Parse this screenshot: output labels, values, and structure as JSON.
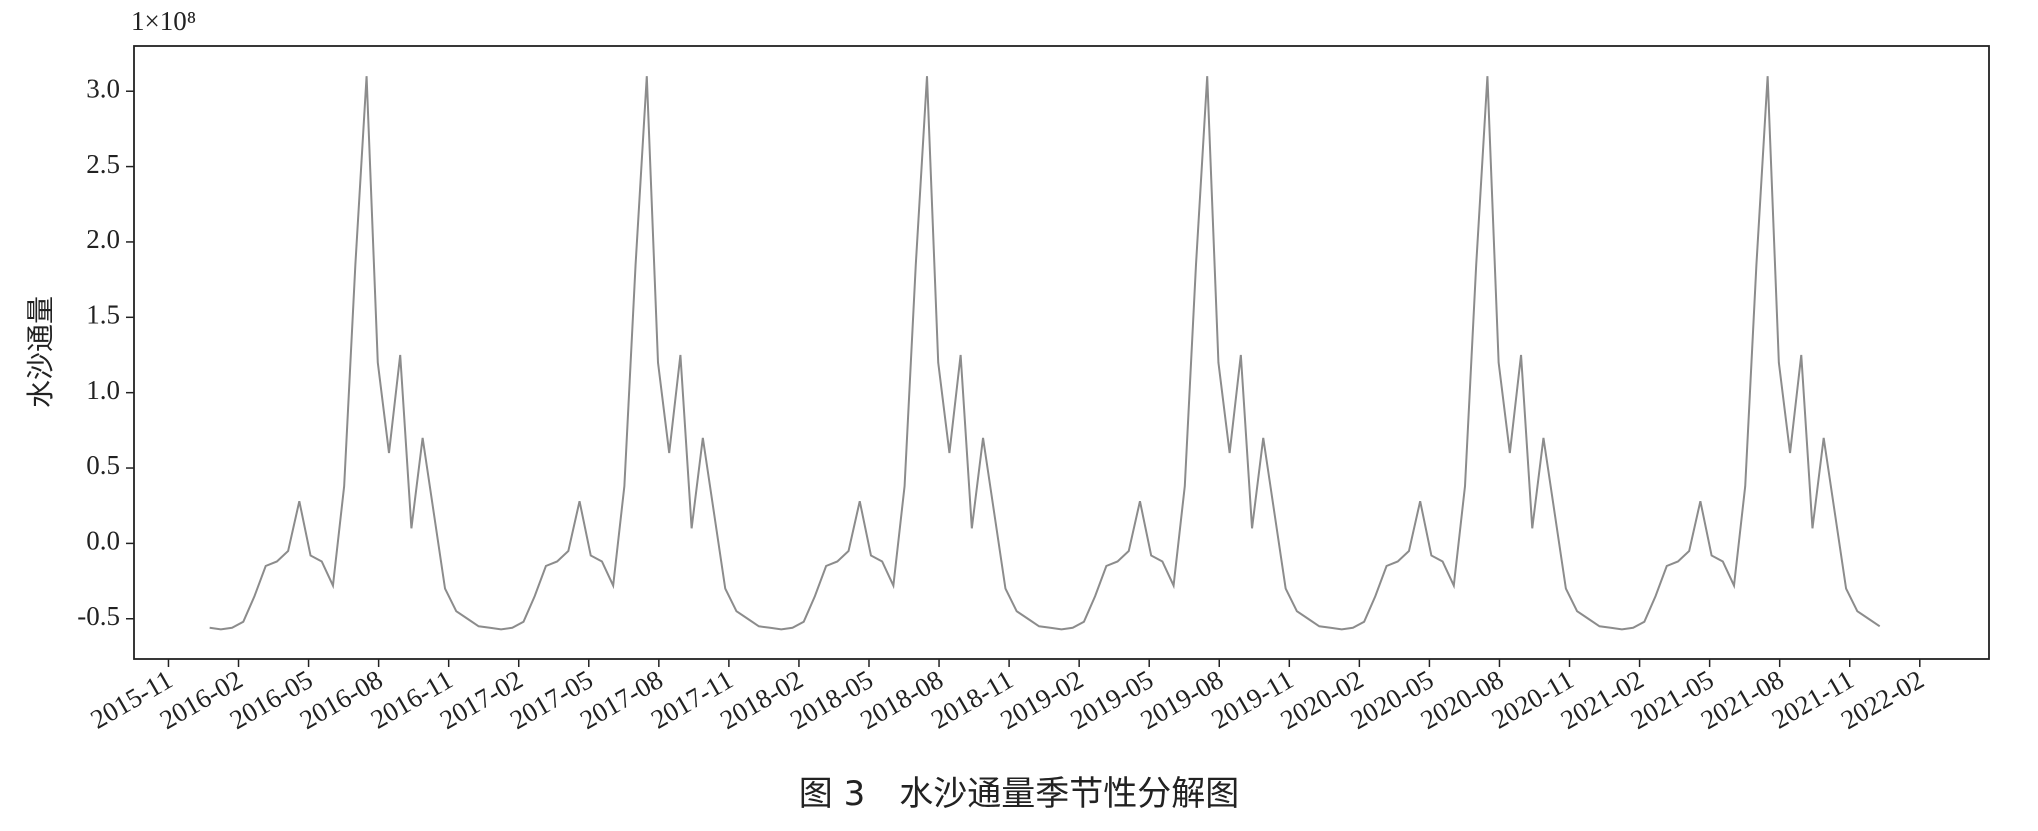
{
  "chart_data": {
    "type": "line",
    "caption": "图 3　水沙通量季节性分解图",
    "ylabel": "水沙通量",
    "offset_label": "1×10⁸",
    "color": "#8c8c8c",
    "x": [
      2015.98,
      2016.02,
      2016.06,
      2016.1,
      2016.14,
      2016.18,
      2016.22,
      2016.26,
      2016.3,
      2016.34,
      2016.38,
      2016.42,
      2016.46,
      2016.5,
      2016.54,
      2016.58,
      2016.62,
      2016.66,
      2016.7,
      2016.74,
      2016.78,
      2016.82,
      2016.86,
      2016.9,
      2016.94,
      2016.98,
      2017.02,
      2017.06,
      2017.1,
      2017.14,
      2017.18,
      2017.22,
      2017.26,
      2017.3,
      2017.34,
      2017.38,
      2017.42,
      2017.46,
      2017.5,
      2017.54,
      2017.58,
      2017.62,
      2017.66,
      2017.7,
      2017.74,
      2017.78,
      2017.82,
      2017.86,
      2017.9,
      2017.94,
      2017.98,
      2018.02,
      2018.06,
      2018.1,
      2018.14,
      2018.18,
      2018.22,
      2018.26,
      2018.3,
      2018.34,
      2018.38,
      2018.42,
      2018.46,
      2018.5,
      2018.54,
      2018.58,
      2018.62,
      2018.66,
      2018.7,
      2018.74,
      2018.78,
      2018.82,
      2018.86,
      2018.9,
      2018.94,
      2018.98,
      2019.02,
      2019.06,
      2019.1,
      2019.14,
      2019.18,
      2019.22,
      2019.26,
      2019.3,
      2019.34,
      2019.38,
      2019.42,
      2019.46,
      2019.5,
      2019.54,
      2019.58,
      2019.62,
      2019.66,
      2019.7,
      2019.74,
      2019.78,
      2019.82,
      2019.86,
      2019.9,
      2019.94,
      2019.98,
      2020.02,
      2020.06,
      2020.1,
      2020.14,
      2020.18,
      2020.22,
      2020.26,
      2020.3,
      2020.34,
      2020.38,
      2020.42,
      2020.46,
      2020.5,
      2020.54,
      2020.58,
      2020.62,
      2020.66,
      2020.7,
      2020.74,
      2020.78,
      2020.82,
      2020.86,
      2020.9,
      2020.94,
      2020.98,
      2021.02,
      2021.06,
      2021.1,
      2021.14,
      2021.18,
      2021.22,
      2021.26,
      2021.3,
      2021.34,
      2021.38,
      2021.42,
      2021.46,
      2021.5,
      2021.54,
      2021.58,
      2021.62,
      2021.66,
      2021.7,
      2021.74,
      2021.78,
      2021.82,
      2021.86,
      2021.9,
      2021.94
    ],
    "values": [
      -0.56,
      -0.57,
      -0.56,
      -0.52,
      -0.35,
      -0.15,
      -0.12,
      -0.05,
      0.28,
      -0.08,
      -0.12,
      -0.28,
      0.38,
      1.85,
      3.1,
      1.2,
      0.6,
      1.25,
      0.1,
      0.7,
      0.2,
      -0.3,
      -0.45,
      -0.5,
      -0.55,
      -0.56,
      -0.57,
      -0.56,
      -0.52,
      -0.35,
      -0.15,
      -0.12,
      -0.05,
      0.28,
      -0.08,
      -0.12,
      -0.28,
      0.38,
      1.85,
      3.1,
      1.2,
      0.6,
      1.25,
      0.1,
      0.7,
      0.2,
      -0.3,
      -0.45,
      -0.5,
      -0.55,
      -0.56,
      -0.57,
      -0.56,
      -0.52,
      -0.35,
      -0.15,
      -0.12,
      -0.05,
      0.28,
      -0.08,
      -0.12,
      -0.28,
      0.38,
      1.85,
      3.1,
      1.2,
      0.6,
      1.25,
      0.1,
      0.7,
      0.2,
      -0.3,
      -0.45,
      -0.5,
      -0.55,
      -0.56,
      -0.57,
      -0.56,
      -0.52,
      -0.35,
      -0.15,
      -0.12,
      -0.05,
      0.28,
      -0.08,
      -0.12,
      -0.28,
      0.38,
      1.85,
      3.1,
      1.2,
      0.6,
      1.25,
      0.1,
      0.7,
      0.2,
      -0.3,
      -0.45,
      -0.5,
      -0.55,
      -0.56,
      -0.57,
      -0.56,
      -0.52,
      -0.35,
      -0.15,
      -0.12,
      -0.05,
      0.28,
      -0.08,
      -0.12,
      -0.28,
      0.38,
      1.85,
      3.1,
      1.2,
      0.6,
      1.25,
      0.1,
      0.7,
      0.2,
      -0.3,
      -0.45,
      -0.5,
      -0.55,
      -0.56,
      -0.57,
      -0.56,
      -0.52,
      -0.35,
      -0.15,
      -0.12,
      -0.05,
      0.28,
      -0.08,
      -0.12,
      -0.28,
      0.38,
      1.85,
      3.1,
      1.2,
      0.6,
      1.25,
      0.1,
      0.7,
      0.2,
      -0.3,
      -0.45,
      -0.5,
      -0.55
    ],
    "xlim": [
      2015.71,
      2022.33
    ],
    "xticks": [
      {
        "value": 2015.833,
        "label": "2015-11"
      },
      {
        "value": 2016.083,
        "label": "2016-02"
      },
      {
        "value": 2016.333,
        "label": "2016-05"
      },
      {
        "value": 2016.583,
        "label": "2016-08"
      },
      {
        "value": 2016.833,
        "label": "2016-11"
      },
      {
        "value": 2017.083,
        "label": "2017-02"
      },
      {
        "value": 2017.333,
        "label": "2017-05"
      },
      {
        "value": 2017.583,
        "label": "2017-08"
      },
      {
        "value": 2017.833,
        "label": "2017-11"
      },
      {
        "value": 2018.083,
        "label": "2018-02"
      },
      {
        "value": 2018.333,
        "label": "2018-05"
      },
      {
        "value": 2018.583,
        "label": "2018-08"
      },
      {
        "value": 2018.833,
        "label": "2018-11"
      },
      {
        "value": 2019.083,
        "label": "2019-02"
      },
      {
        "value": 2019.333,
        "label": "2019-05"
      },
      {
        "value": 2019.583,
        "label": "2019-08"
      },
      {
        "value": 2019.833,
        "label": "2019-11"
      },
      {
        "value": 2020.083,
        "label": "2020-02"
      },
      {
        "value": 2020.333,
        "label": "2020-05"
      },
      {
        "value": 2020.583,
        "label": "2020-08"
      },
      {
        "value": 2020.833,
        "label": "2020-11"
      },
      {
        "value": 2021.083,
        "label": "2021-02"
      },
      {
        "value": 2021.333,
        "label": "2021-05"
      },
      {
        "value": 2021.583,
        "label": "2021-08"
      },
      {
        "value": 2021.833,
        "label": "2021-11"
      },
      {
        "value": 2022.083,
        "label": "2022-02"
      }
    ],
    "ylim": [
      -0.767,
      3.3
    ],
    "yticks": [
      -0.5,
      {
        "value": 0,
        "label": "0.0"
      },
      0.5,
      {
        "value": 1,
        "label": "1.0"
      },
      1.5,
      {
        "value": 2,
        "label": "2.0"
      },
      2.5,
      {
        "value": 3,
        "label": "3.0"
      }
    ]
  }
}
